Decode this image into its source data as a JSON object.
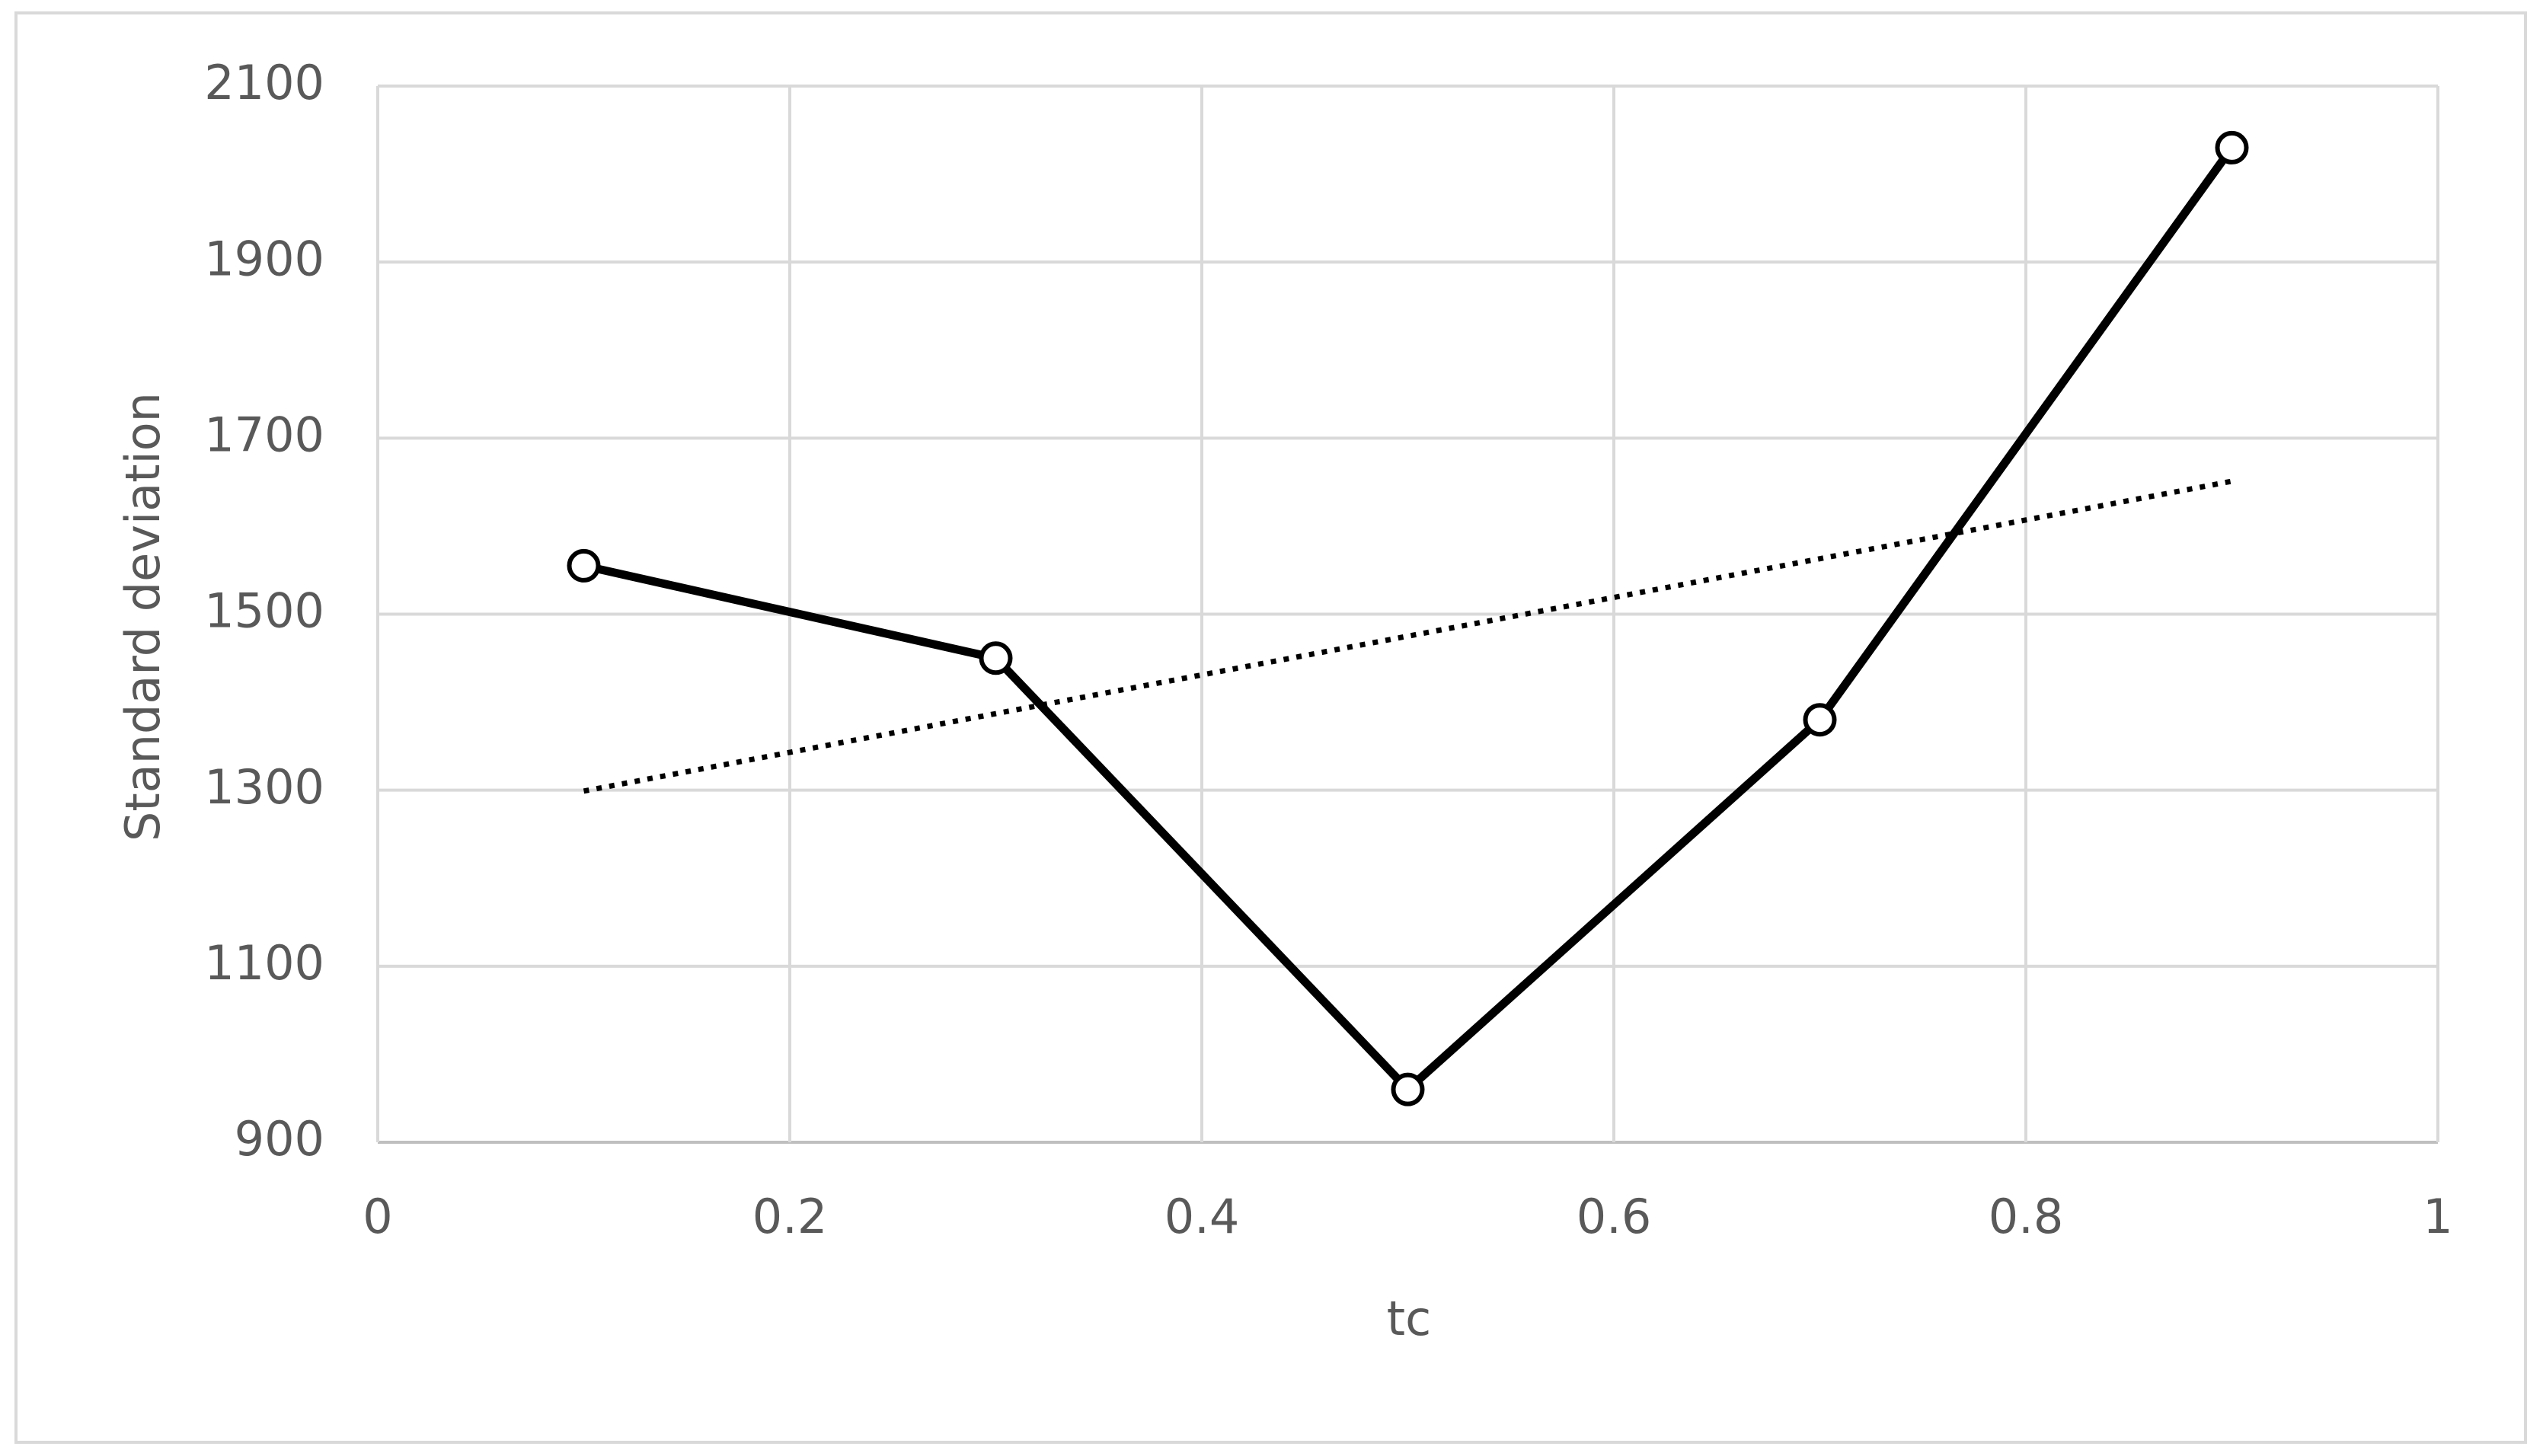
{
  "chart_data": {
    "type": "line",
    "x_label": "tc",
    "y_label": "Standard deviation",
    "x": [
      0.1,
      0.3,
      0.5,
      0.7,
      0.9
    ],
    "values": [
      1555,
      1450,
      960,
      1380,
      2030
    ],
    "color": "#000000",
    "trendline": {
      "x": [
        0.1,
        0.9
      ],
      "values": [
        1299,
        1651
      ]
    },
    "xlim": [
      0,
      1
    ],
    "xticks": [
      0,
      0.2,
      0.4,
      0.6,
      0.8,
      1
    ],
    "ylim": [
      900,
      2100
    ],
    "yticks": [
      900,
      1100,
      1300,
      1500,
      1700,
      1900,
      2100
    ],
    "grid": true
  }
}
